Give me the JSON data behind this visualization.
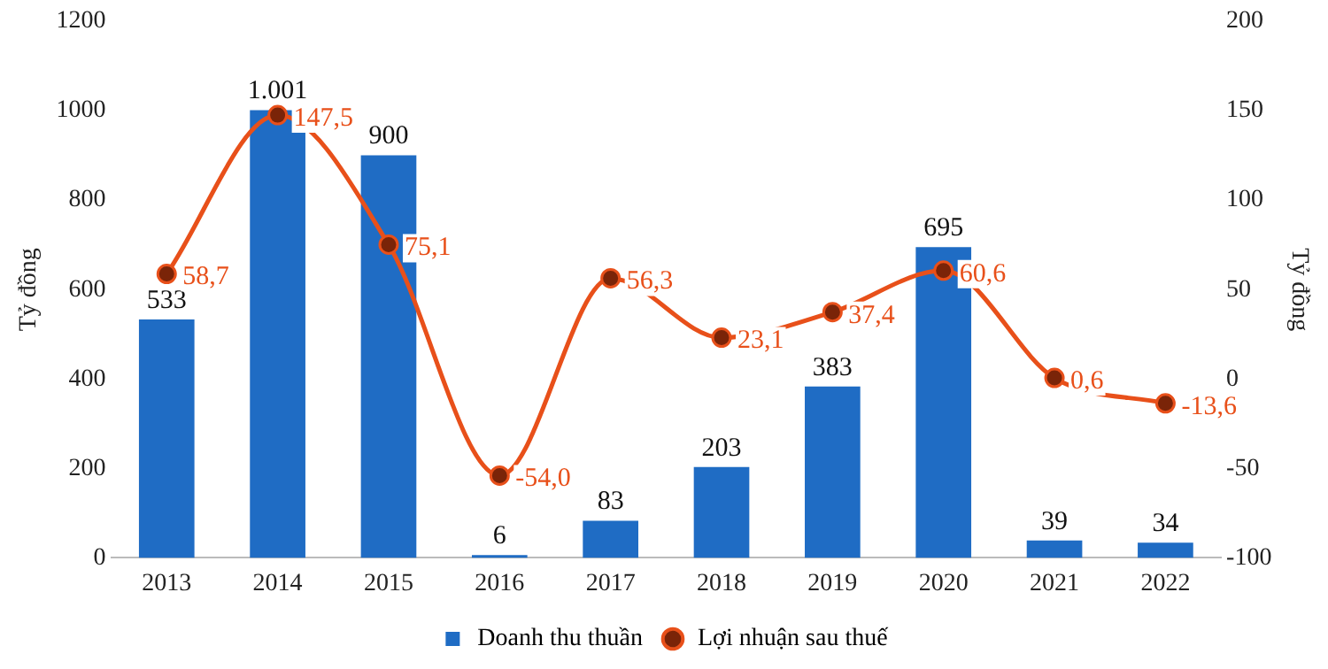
{
  "chart_data": {
    "type": "bar",
    "categories": [
      "2013",
      "2014",
      "2015",
      "2016",
      "2017",
      "2018",
      "2019",
      "2020",
      "2021",
      "2022"
    ],
    "ylabel": "Tỷ đồng",
    "y2label": "Tỷ đồng",
    "ylim": [
      0,
      1200
    ],
    "yticks": [
      0,
      200,
      400,
      600,
      800,
      1000,
      1200
    ],
    "y2lim": [
      -100,
      200
    ],
    "y2ticks": [
      -100,
      -50,
      0,
      50,
      100,
      150,
      200
    ],
    "series": [
      {
        "name": "Doanh thu thuần",
        "color": "#1f6cc4",
        "values": [
          533,
          1001,
          900,
          6,
          83,
          203,
          383,
          695,
          39,
          34
        ],
        "value_labels": [
          "533",
          "1.001",
          "900",
          "6",
          "83",
          "203",
          "383",
          "695",
          "39",
          "34"
        ]
      },
      {
        "name": "Lợi nhuận sau thuế",
        "type": "line",
        "axis": "y2",
        "color": "#e8501a",
        "marker": "circle",
        "values": [
          58.7,
          147.5,
          75.1,
          -54.0,
          56.3,
          23.1,
          37.4,
          60.6,
          0.6,
          -13.6
        ],
        "value_labels": [
          "58,7",
          "147,5",
          "75,1",
          "-54,0",
          "56,3",
          "23,1",
          "37,4",
          "60,6",
          "0,6",
          "-13,6"
        ]
      }
    ],
    "grid": false,
    "legend": "bottom"
  }
}
